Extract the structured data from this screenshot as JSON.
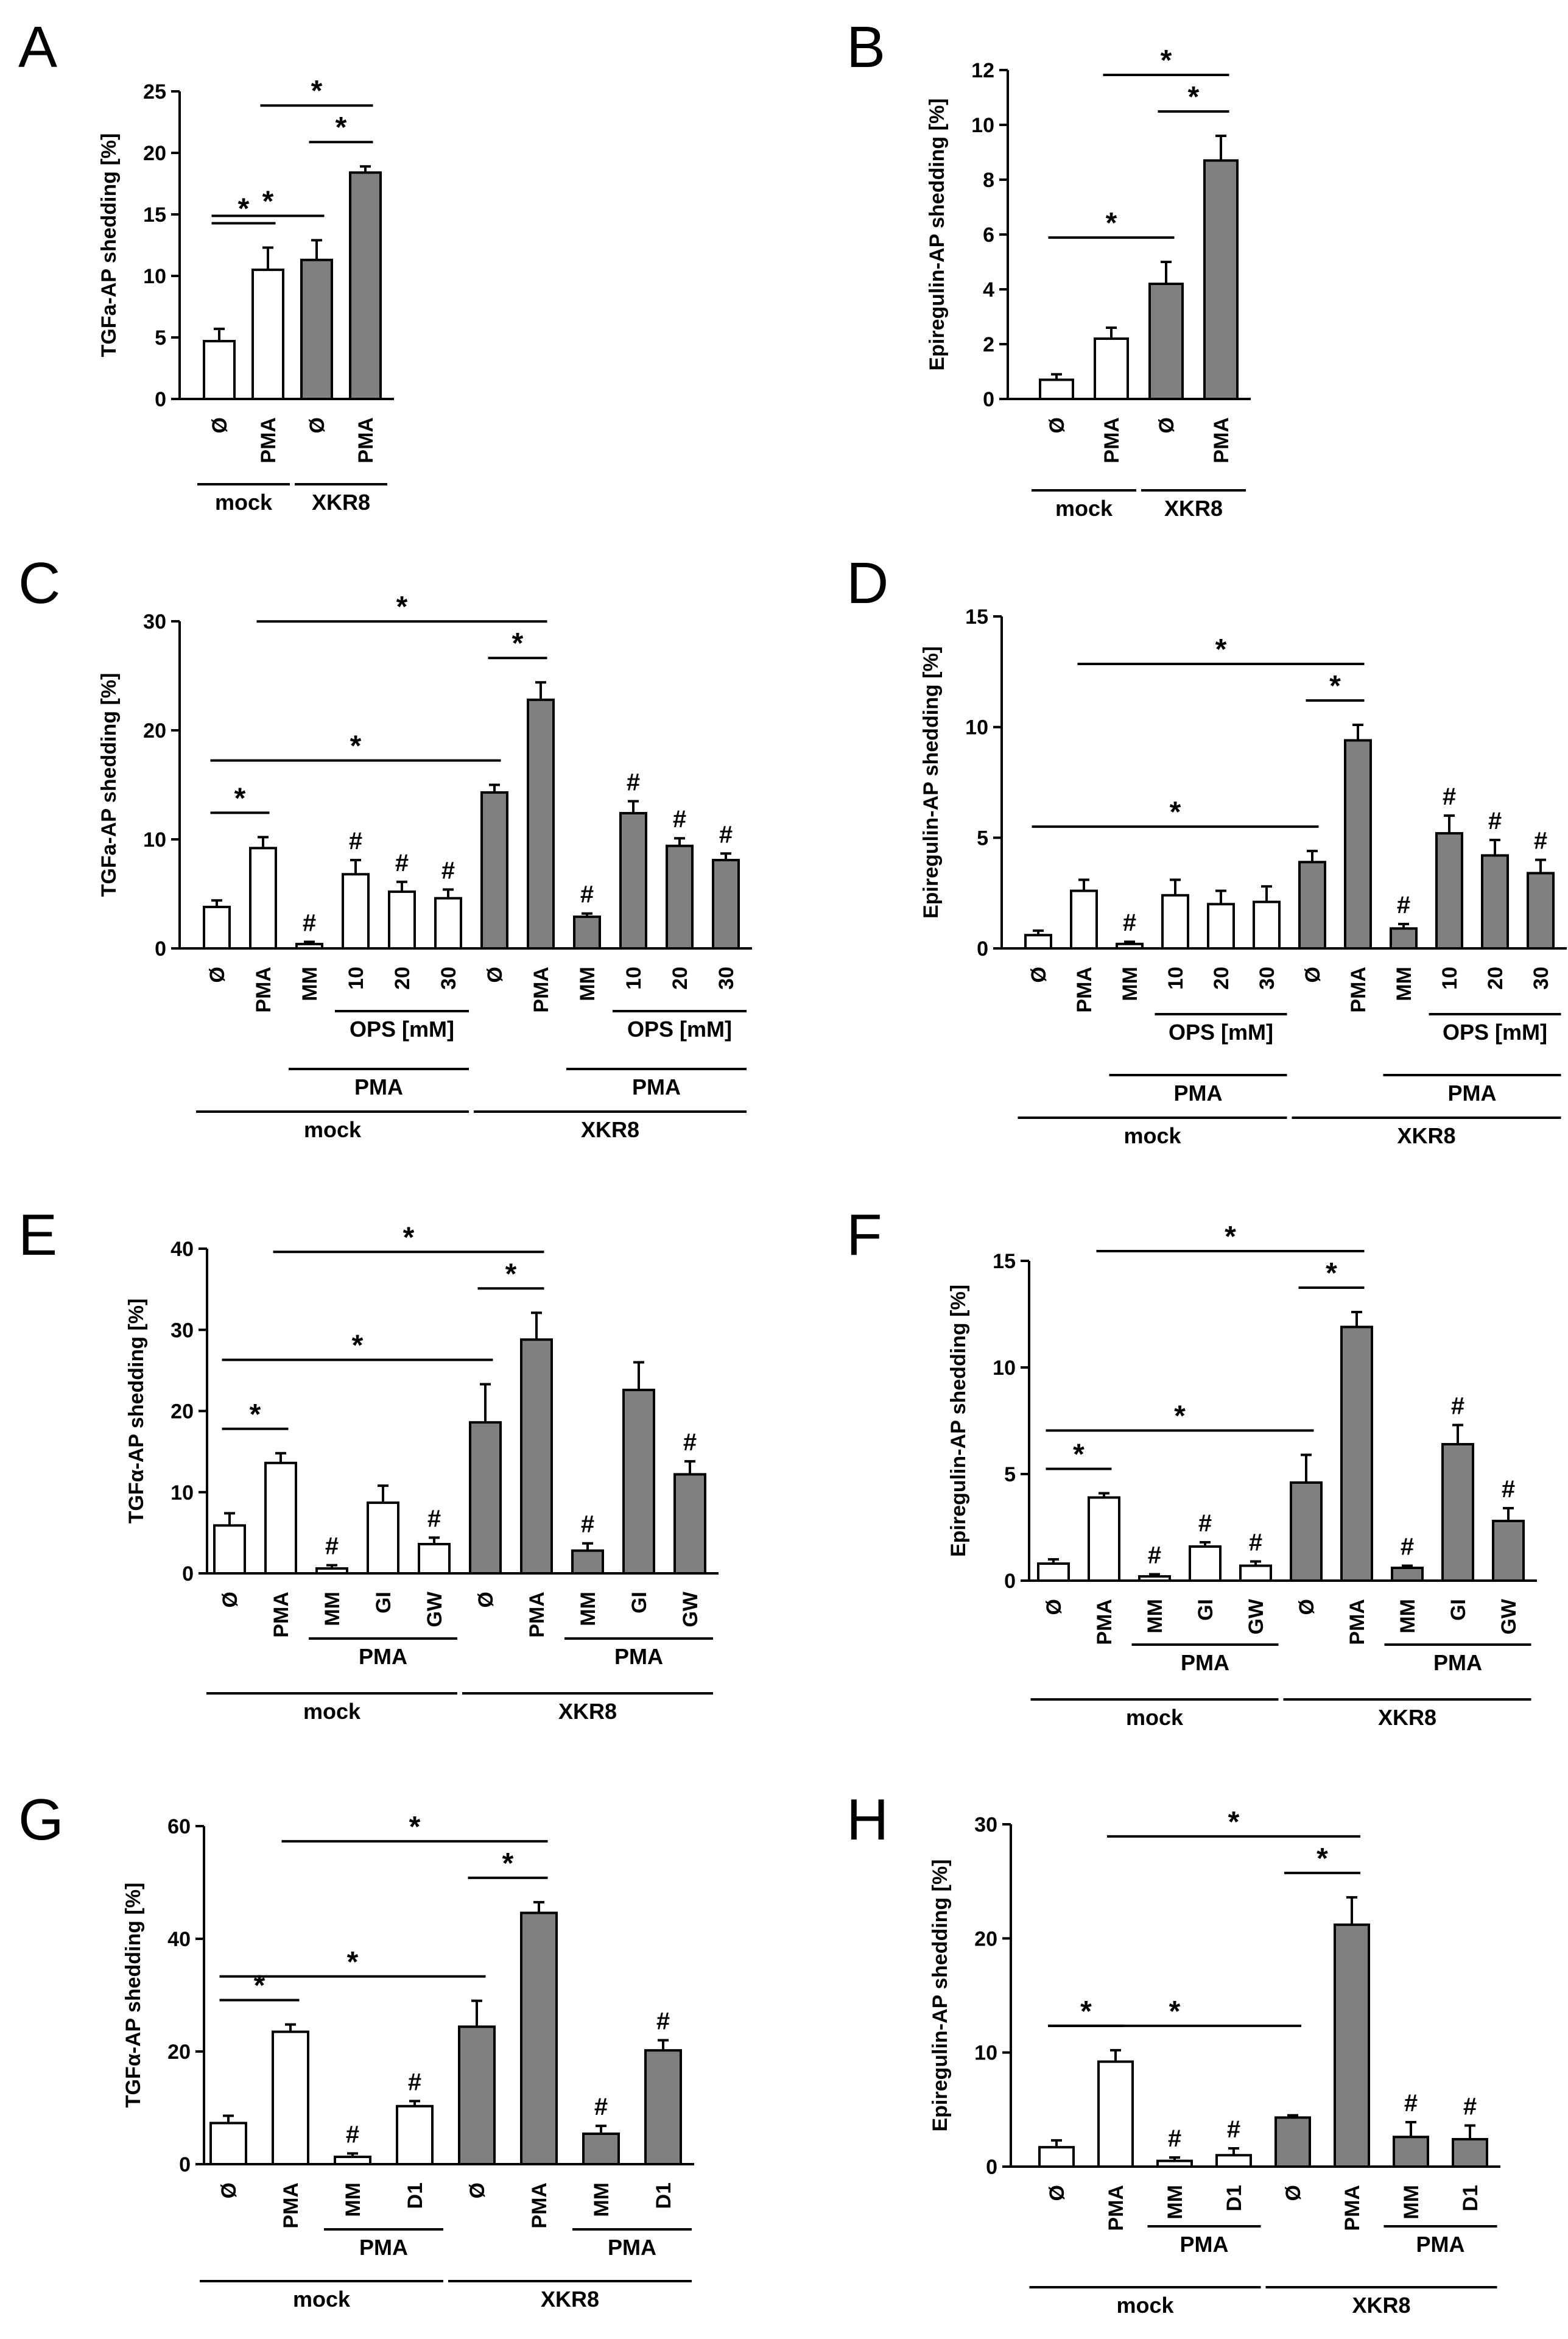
{
  "colors": {
    "mock": "#ffffff",
    "xkr8": "#808080",
    "stroke": "#000000"
  },
  "chart_data": [
    {
      "panel": "A",
      "type": "bar",
      "ylabel": "TGFa-AP shedding [%]",
      "ylim": [
        0,
        25
      ],
      "yticks": [
        0,
        5,
        10,
        15,
        20,
        25
      ],
      "categories": [
        "Ø",
        "PMA",
        "Ø",
        "PMA"
      ],
      "values": [
        4.7,
        10.5,
        11.3,
        18.4
      ],
      "errors": [
        1.0,
        1.8,
        1.6,
        0.5
      ],
      "fill": [
        "mock",
        "mock",
        "xkr8",
        "xkr8"
      ],
      "hash": [],
      "comparisons": [
        [
          0,
          1
        ],
        [
          0,
          2
        ],
        [
          2,
          3
        ],
        [
          1,
          3
        ]
      ],
      "groups": [
        {
          "label": "mock",
          "from": 0,
          "to": 1,
          "level": 1
        },
        {
          "label": "XKR8",
          "from": 2,
          "to": 3,
          "level": 1
        }
      ]
    },
    {
      "panel": "B",
      "type": "bar",
      "ylabel": "Epiregulin-AP shedding [%]",
      "ylim": [
        0,
        12
      ],
      "yticks": [
        0,
        2,
        4,
        6,
        8,
        10,
        12
      ],
      "categories": [
        "Ø",
        "PMA",
        "Ø",
        "PMA"
      ],
      "values": [
        0.7,
        2.2,
        4.2,
        8.7
      ],
      "errors": [
        0.2,
        0.4,
        0.8,
        0.9
      ],
      "fill": [
        "mock",
        "mock",
        "xkr8",
        "xkr8"
      ],
      "hash": [],
      "comparisons": [
        [
          0,
          2
        ],
        [
          2,
          3
        ],
        [
          1,
          3
        ]
      ],
      "groups": [
        {
          "label": "mock",
          "from": 0,
          "to": 1,
          "level": 1
        },
        {
          "label": "XKR8",
          "from": 2,
          "to": 3,
          "level": 1
        }
      ]
    },
    {
      "panel": "C",
      "type": "bar",
      "ylabel": "TGFa-AP shedding [%]",
      "ylim": [
        0,
        30
      ],
      "yticks": [
        0,
        10,
        20,
        30
      ],
      "categories": [
        "Ø",
        "PMA",
        "MM",
        "10",
        "20",
        "30",
        "Ø",
        "PMA",
        "MM",
        "10",
        "20",
        "30"
      ],
      "values": [
        3.8,
        9.2,
        0.4,
        6.8,
        5.2,
        4.6,
        14.3,
        22.8,
        2.9,
        12.4,
        9.4,
        8.1
      ],
      "errors": [
        0.6,
        1.0,
        0.2,
        1.3,
        0.9,
        0.8,
        0.7,
        1.6,
        0.3,
        1.1,
        0.7,
        0.6
      ],
      "fill": [
        "mock",
        "mock",
        "mock",
        "mock",
        "mock",
        "mock",
        "xkr8",
        "xkr8",
        "xkr8",
        "xkr8",
        "xkr8",
        "xkr8"
      ],
      "hash": [
        2,
        3,
        4,
        5,
        8,
        9,
        10,
        11
      ],
      "comparisons": [
        [
          0,
          1
        ],
        [
          0,
          6
        ],
        [
          6,
          7
        ],
        [
          1,
          7
        ]
      ],
      "groups": [
        {
          "label": "OPS [mM]",
          "from": 3,
          "to": 5,
          "level": 1
        },
        {
          "label": "OPS [mM]",
          "from": 9,
          "to": 11,
          "level": 1
        },
        {
          "label": "PMA",
          "from": 2,
          "to": 5,
          "level": 2
        },
        {
          "label": "PMA",
          "from": 8,
          "to": 11,
          "level": 2
        },
        {
          "label": "mock",
          "from": 0,
          "to": 5,
          "level": 3
        },
        {
          "label": "XKR8",
          "from": 6,
          "to": 11,
          "level": 3
        }
      ]
    },
    {
      "panel": "D",
      "type": "bar",
      "ylabel": "Epiregulin-AP shedding [%]",
      "ylim": [
        0,
        15
      ],
      "yticks": [
        0,
        5,
        10,
        15
      ],
      "categories": [
        "Ø",
        "PMA",
        "MM",
        "10",
        "20",
        "30",
        "Ø",
        "PMA",
        "MM",
        "10",
        "20",
        "30"
      ],
      "values": [
        0.6,
        2.6,
        0.2,
        2.4,
        2.0,
        2.1,
        3.9,
        9.4,
        0.9,
        5.2,
        4.2,
        3.4
      ],
      "errors": [
        0.2,
        0.5,
        0.1,
        0.7,
        0.6,
        0.7,
        0.5,
        0.7,
        0.2,
        0.8,
        0.7,
        0.6
      ],
      "fill": [
        "mock",
        "mock",
        "mock",
        "mock",
        "mock",
        "mock",
        "xkr8",
        "xkr8",
        "xkr8",
        "xkr8",
        "xkr8",
        "xkr8"
      ],
      "hash": [
        2,
        8,
        9,
        10,
        11
      ],
      "comparisons": [
        [
          0,
          6
        ],
        [
          6,
          7
        ],
        [
          1,
          7
        ]
      ],
      "groups": [
        {
          "label": "OPS [mM]",
          "from": 3,
          "to": 5,
          "level": 1
        },
        {
          "label": "OPS [mM]",
          "from": 9,
          "to": 11,
          "level": 1
        },
        {
          "label": "PMA",
          "from": 2,
          "to": 5,
          "level": 2
        },
        {
          "label": "PMA",
          "from": 8,
          "to": 11,
          "level": 2
        },
        {
          "label": "mock",
          "from": 0,
          "to": 5,
          "level": 3
        },
        {
          "label": "XKR8",
          "from": 6,
          "to": 11,
          "level": 3
        }
      ]
    },
    {
      "panel": "E",
      "type": "bar",
      "ylabel": "TGFα-AP shedding [%]",
      "ylim": [
        0,
        40
      ],
      "yticks": [
        0,
        10,
        20,
        30,
        40
      ],
      "categories": [
        "Ø",
        "PMA",
        "MM",
        "GI",
        "GW",
        "Ø",
        "PMA",
        "MM",
        "GI",
        "GW"
      ],
      "values": [
        5.9,
        13.6,
        0.6,
        8.7,
        3.6,
        18.6,
        28.8,
        2.8,
        22.6,
        12.2
      ],
      "errors": [
        1.5,
        1.2,
        0.4,
        2.1,
        0.8,
        4.7,
        3.3,
        0.9,
        3.4,
        1.6
      ],
      "fill": [
        "mock",
        "mock",
        "mock",
        "mock",
        "mock",
        "xkr8",
        "xkr8",
        "xkr8",
        "xkr8",
        "xkr8"
      ],
      "hash": [
        2,
        4,
        7,
        9
      ],
      "comparisons": [
        [
          0,
          1
        ],
        [
          0,
          5
        ],
        [
          5,
          6
        ],
        [
          1,
          6
        ]
      ],
      "groups": [
        {
          "label": "PMA",
          "from": 2,
          "to": 4,
          "level": 1
        },
        {
          "label": "PMA",
          "from": 7,
          "to": 9,
          "level": 1
        },
        {
          "label": "mock",
          "from": 0,
          "to": 4,
          "level": 2
        },
        {
          "label": "XKR8",
          "from": 5,
          "to": 9,
          "level": 2
        }
      ]
    },
    {
      "panel": "F",
      "type": "bar",
      "ylabel": "Epiregulin-AP shedding [%]",
      "ylim": [
        0,
        15
      ],
      "yticks": [
        0,
        5,
        10,
        15
      ],
      "categories": [
        "Ø",
        "PMA",
        "MM",
        "GI",
        "GW",
        "Ø",
        "PMA",
        "MM",
        "GI",
        "GW"
      ],
      "values": [
        0.8,
        3.9,
        0.2,
        1.6,
        0.7,
        4.6,
        11.9,
        0.6,
        6.4,
        2.8
      ],
      "errors": [
        0.2,
        0.2,
        0.1,
        0.2,
        0.2,
        1.3,
        0.7,
        0.1,
        0.9,
        0.6
      ],
      "fill": [
        "mock",
        "mock",
        "mock",
        "mock",
        "mock",
        "xkr8",
        "xkr8",
        "xkr8",
        "xkr8",
        "xkr8"
      ],
      "hash": [
        2,
        3,
        4,
        7,
        8,
        9
      ],
      "comparisons": [
        [
          0,
          1
        ],
        [
          0,
          5
        ],
        [
          5,
          6
        ],
        [
          1,
          6
        ]
      ],
      "groups": [
        {
          "label": "PMA",
          "from": 2,
          "to": 4,
          "level": 1
        },
        {
          "label": "PMA",
          "from": 7,
          "to": 9,
          "level": 1
        },
        {
          "label": "mock",
          "from": 0,
          "to": 4,
          "level": 2
        },
        {
          "label": "XKR8",
          "from": 5,
          "to": 9,
          "level": 2
        }
      ]
    },
    {
      "panel": "G",
      "type": "bar",
      "ylabel": "TGFα-AP shedding [%]",
      "ylim": [
        0,
        60
      ],
      "yticks": [
        0,
        20,
        40,
        60
      ],
      "categories": [
        "Ø",
        "PMA",
        "MM",
        "D1",
        "Ø",
        "PMA",
        "MM",
        "D1"
      ],
      "values": [
        7.3,
        23.5,
        1.3,
        10.3,
        24.4,
        44.6,
        5.4,
        20.2
      ],
      "errors": [
        1.3,
        1.3,
        0.6,
        0.9,
        4.6,
        1.9,
        1.4,
        1.8
      ],
      "fill": [
        "mock",
        "mock",
        "mock",
        "mock",
        "xkr8",
        "xkr8",
        "xkr8",
        "xkr8"
      ],
      "hash": [
        2,
        3,
        6,
        7
      ],
      "comparisons": [
        [
          0,
          1
        ],
        [
          0,
          4
        ],
        [
          4,
          5
        ],
        [
          1,
          5
        ]
      ],
      "groups": [
        {
          "label": "PMA",
          "from": 2,
          "to": 3,
          "level": 1
        },
        {
          "label": "PMA",
          "from": 6,
          "to": 7,
          "level": 1
        },
        {
          "label": "mock",
          "from": 0,
          "to": 3,
          "level": 2
        },
        {
          "label": "XKR8",
          "from": 4,
          "to": 7,
          "level": 2
        }
      ]
    },
    {
      "panel": "H",
      "type": "bar",
      "ylabel": "Epiregulin-AP shedding [%]",
      "ylim": [
        0,
        30
      ],
      "yticks": [
        0,
        10,
        20,
        30
      ],
      "categories": [
        "Ø",
        "PMA",
        "MM",
        "D1",
        "Ø",
        "PMA",
        "MM",
        "D1"
      ],
      "values": [
        1.7,
        9.2,
        0.5,
        1.0,
        4.3,
        21.2,
        2.6,
        2.4
      ],
      "errors": [
        0.6,
        1.0,
        0.3,
        0.6,
        0.2,
        2.4,
        1.3,
        1.2
      ],
      "fill": [
        "mock",
        "mock",
        "mock",
        "mock",
        "xkr8",
        "xkr8",
        "xkr8",
        "xkr8"
      ],
      "hash": [
        2,
        3,
        6,
        7
      ],
      "comparisons": [
        [
          0,
          1
        ],
        [
          0,
          4
        ],
        [
          4,
          5
        ],
        [
          1,
          5
        ]
      ],
      "groups": [
        {
          "label": "PMA",
          "from": 2,
          "to": 3,
          "level": 1
        },
        {
          "label": "PMA",
          "from": 6,
          "to": 7,
          "level": 1
        },
        {
          "label": "mock",
          "from": 0,
          "to": 3,
          "level": 2
        },
        {
          "label": "XKR8",
          "from": 4,
          "to": 7,
          "level": 2
        }
      ]
    }
  ]
}
